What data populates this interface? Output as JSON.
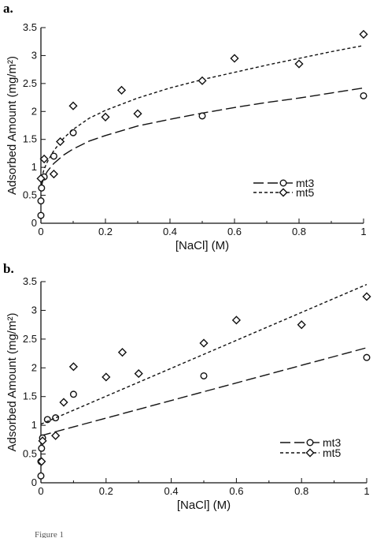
{
  "figure": {
    "caption": "Figure 1"
  },
  "chart_data": [
    {
      "panel_label": "a.",
      "type": "scatter",
      "xlabel": "[NaCl] (M)",
      "ylabel": "Adsorbed Amount (mg/m²)",
      "xlim": [
        0,
        1
      ],
      "ylim": [
        0,
        3.5
      ],
      "x_ticks": [
        "0",
        "0.2",
        "0.4",
        "0.6",
        "0.8",
        "1"
      ],
      "y_ticks": [
        "0",
        "0.5",
        "1",
        "1.5",
        "2",
        "2.5",
        "3",
        "3.5"
      ],
      "legend_position": "center-right",
      "series": [
        {
          "name": "mt3",
          "marker": "circle",
          "line": "long-dash",
          "points": [
            [
              0,
              0.14
            ],
            [
              0,
              0.4
            ],
            [
              0.002,
              0.63
            ],
            [
              0.01,
              0.83
            ],
            [
              0.04,
              1.2
            ],
            [
              0.1,
              1.62
            ],
            [
              0.5,
              1.92
            ],
            [
              1.0,
              2.28
            ]
          ],
          "fit": [
            [
              0,
              0.6
            ],
            [
              0.005,
              0.74
            ],
            [
              0.01,
              0.82
            ],
            [
              0.02,
              0.93
            ],
            [
              0.04,
              1.07
            ],
            [
              0.07,
              1.22
            ],
            [
              0.1,
              1.33
            ],
            [
              0.15,
              1.47
            ],
            [
              0.2,
              1.57
            ],
            [
              0.3,
              1.74
            ],
            [
              0.4,
              1.86
            ],
            [
              0.5,
              1.97
            ],
            [
              0.6,
              2.07
            ],
            [
              0.7,
              2.16
            ],
            [
              0.8,
              2.24
            ],
            [
              0.9,
              2.33
            ],
            [
              1.0,
              2.42
            ]
          ]
        },
        {
          "name": "mt5",
          "marker": "diamond",
          "line": "short-dash",
          "points": [
            [
              0,
              0.8
            ],
            [
              0.01,
              1.15
            ],
            [
              0.04,
              0.88
            ],
            [
              0.06,
              1.46
            ],
            [
              0.1,
              2.1
            ],
            [
              0.2,
              1.9
            ],
            [
              0.25,
              2.38
            ],
            [
              0.3,
              1.96
            ],
            [
              0.5,
              2.55
            ],
            [
              0.6,
              2.95
            ],
            [
              0.8,
              2.85
            ],
            [
              1.0,
              3.38
            ]
          ],
          "fit": [
            [
              0,
              0.7
            ],
            [
              0.005,
              0.87
            ],
            [
              0.01,
              0.97
            ],
            [
              0.02,
              1.1
            ],
            [
              0.04,
              1.3
            ],
            [
              0.07,
              1.52
            ],
            [
              0.1,
              1.68
            ],
            [
              0.15,
              1.88
            ],
            [
              0.2,
              2.02
            ],
            [
              0.3,
              2.24
            ],
            [
              0.4,
              2.42
            ],
            [
              0.5,
              2.57
            ],
            [
              0.6,
              2.7
            ],
            [
              0.7,
              2.83
            ],
            [
              0.8,
              2.95
            ],
            [
              0.9,
              3.07
            ],
            [
              1.0,
              3.18
            ]
          ]
        }
      ]
    },
    {
      "panel_label": "b.",
      "type": "scatter",
      "xlabel": "[NaCl] (M)",
      "ylabel": "Adsorbed Amount (mg/m²)",
      "xlim": [
        0,
        1
      ],
      "ylim": [
        0,
        3.5
      ],
      "x_ticks": [
        "0",
        "0.2",
        "0.4",
        "0.6",
        "0.8",
        "1"
      ],
      "y_ticks": [
        "0",
        "0.5",
        "1",
        "1.5",
        "2",
        "2.5",
        "3",
        "3.5"
      ],
      "legend_position": "bottom-right",
      "series": [
        {
          "name": "mt3",
          "marker": "circle",
          "line": "long-dash",
          "points": [
            [
              0,
              0.12
            ],
            [
              0,
              0.37
            ],
            [
              0.002,
              0.6
            ],
            [
              0.005,
              0.78
            ],
            [
              0.02,
              1.1
            ],
            [
              0.045,
              1.13
            ],
            [
              0.1,
              1.54
            ],
            [
              0.5,
              1.86
            ],
            [
              1.0,
              2.18
            ]
          ],
          "fit": [
            [
              0,
              0.82
            ],
            [
              1.0,
              2.35
            ]
          ]
        },
        {
          "name": "mt5",
          "marker": "diamond",
          "line": "short-dash",
          "points": [
            [
              0.002,
              0.37
            ],
            [
              0.005,
              0.73
            ],
            [
              0.045,
              0.82
            ],
            [
              0.07,
              1.4
            ],
            [
              0.1,
              2.02
            ],
            [
              0.2,
              1.84
            ],
            [
              0.25,
              2.27
            ],
            [
              0.3,
              1.9
            ],
            [
              0.5,
              2.43
            ],
            [
              0.6,
              2.83
            ],
            [
              0.8,
              2.75
            ],
            [
              1.0,
              3.24
            ]
          ],
          "fit": [
            [
              0,
              1.02
            ],
            [
              1.0,
              3.45
            ]
          ]
        }
      ]
    }
  ]
}
